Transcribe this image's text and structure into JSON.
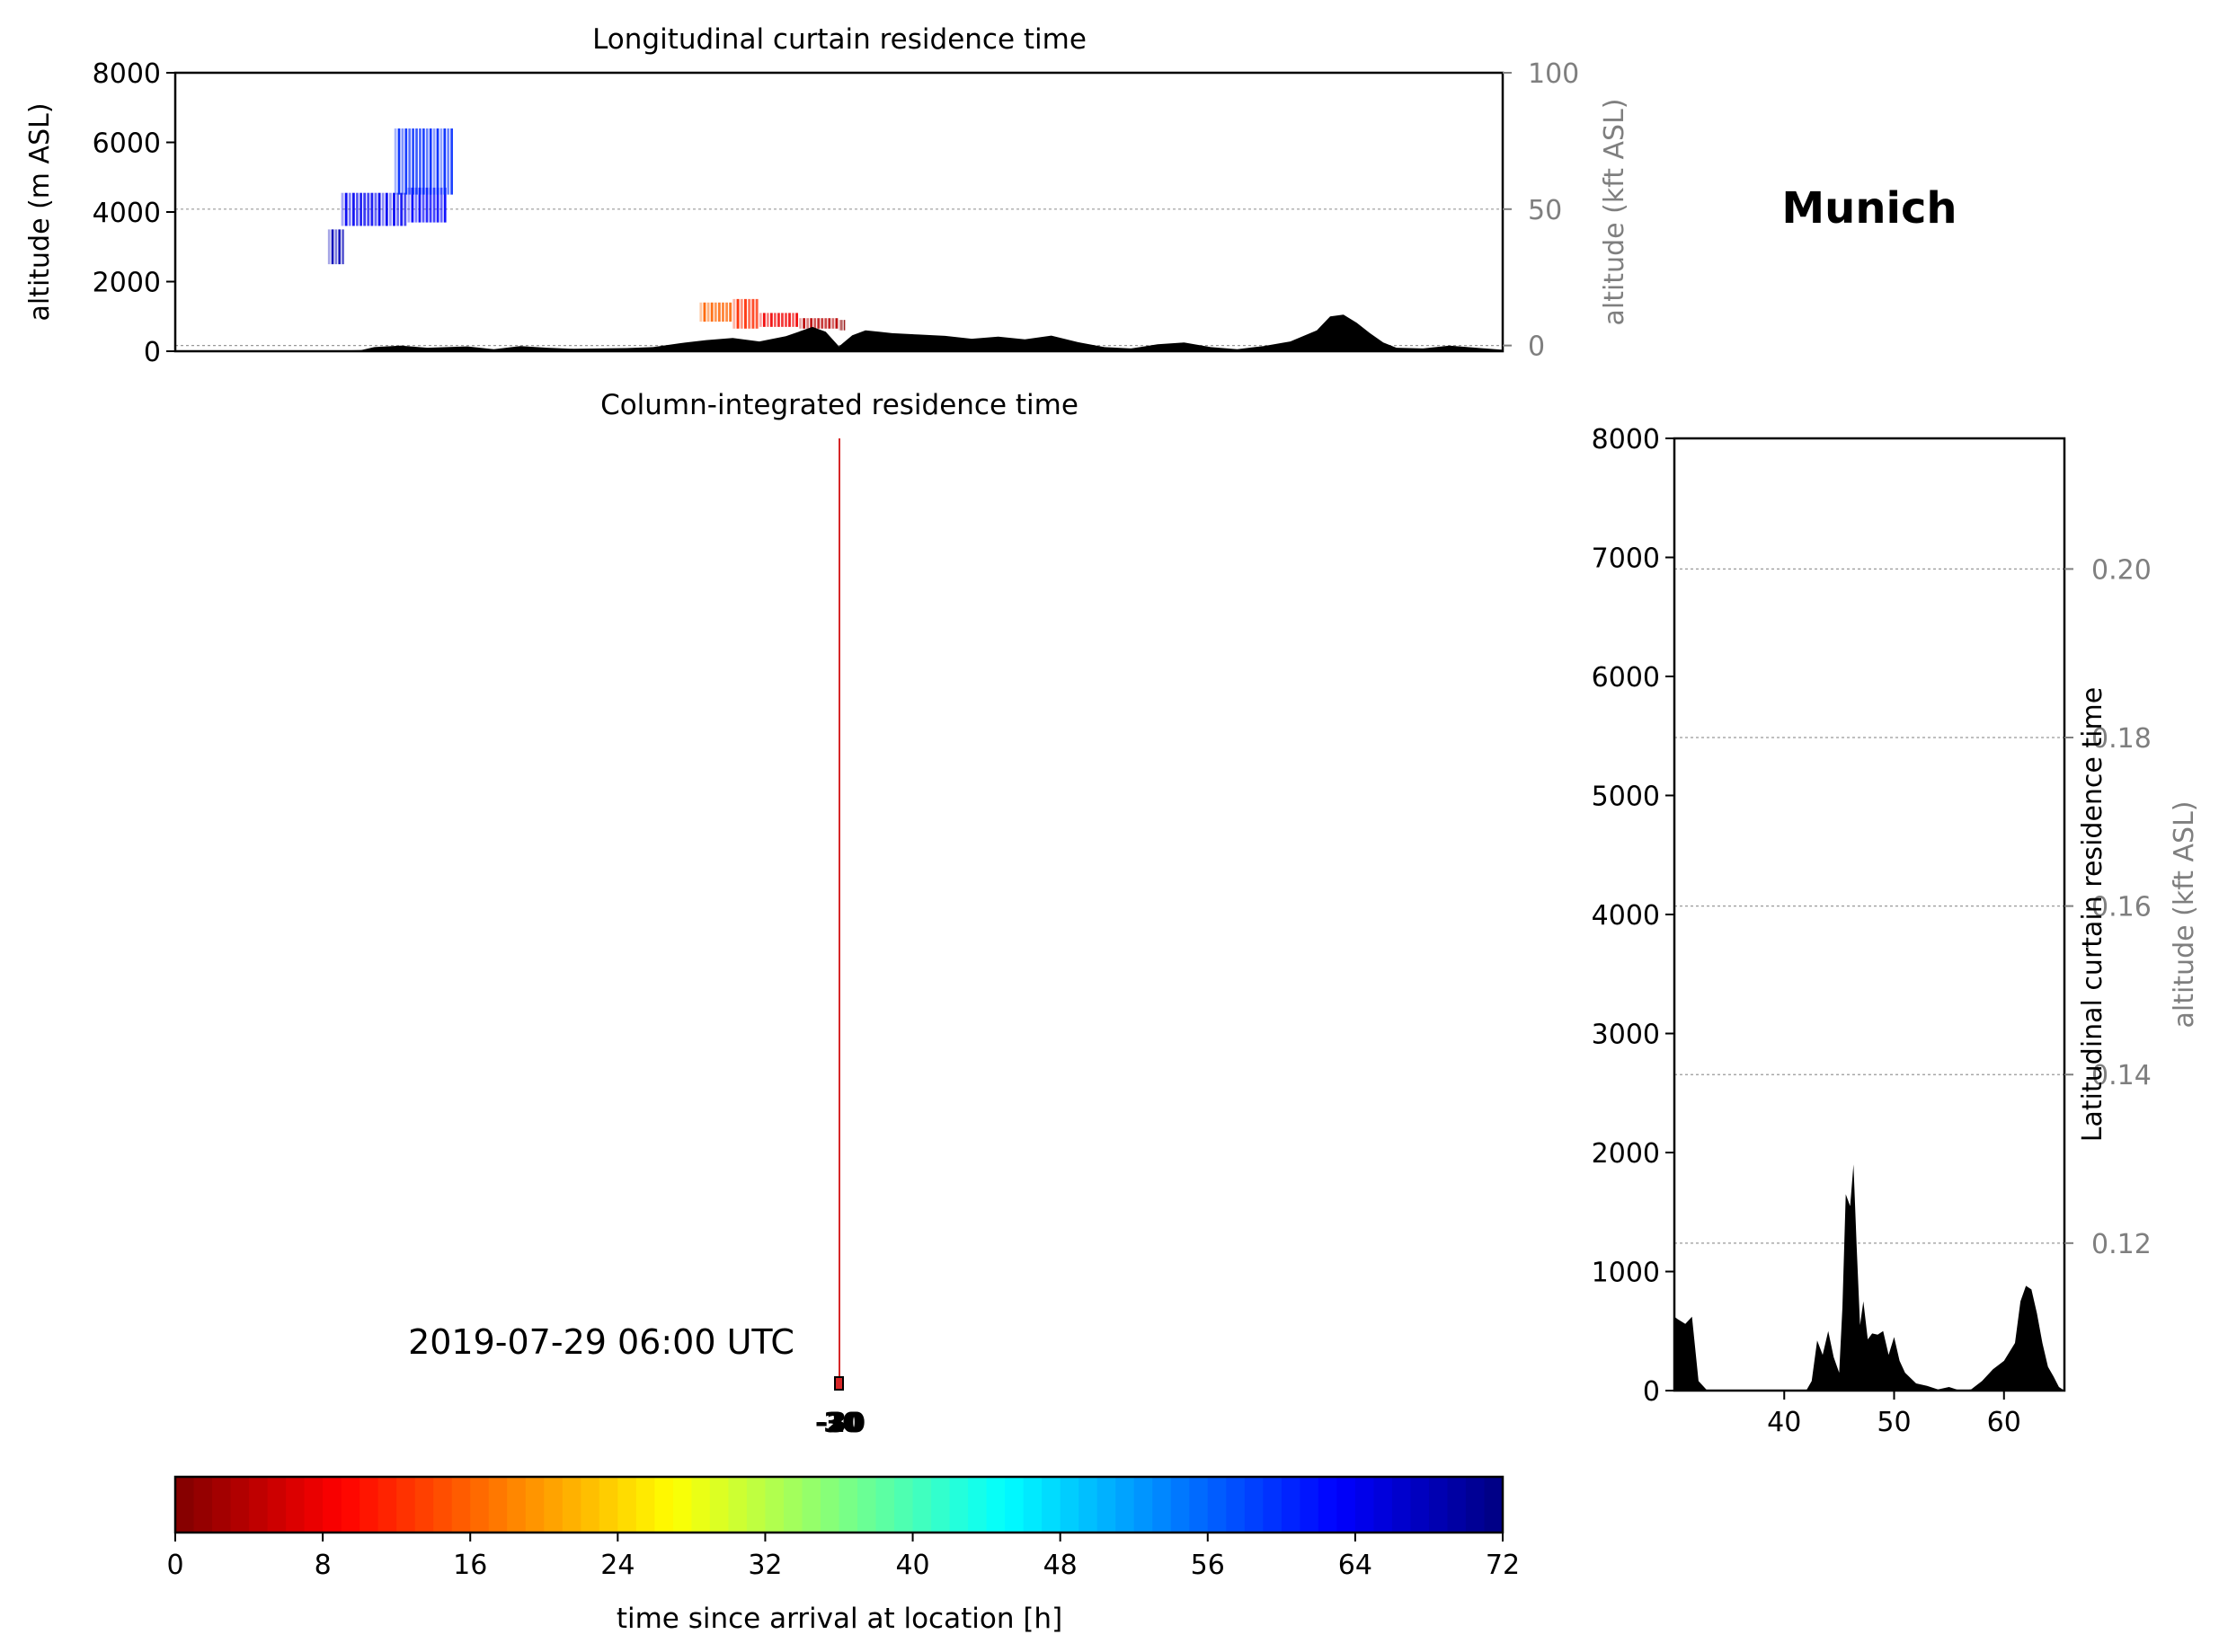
{
  "location": {
    "name": "Munich"
  },
  "timestamp": "2019-07-29 06:00 UTC",
  "point_labels": [
    "-10",
    "-20",
    "-30",
    "30"
  ],
  "colors": {
    "terrain": "#000000",
    "marker_line": "#d62728",
    "grid": "#999999",
    "secondary_axis": "#7f7f7f"
  },
  "chart_data": [
    {
      "id": "longitudinal",
      "type": "area",
      "title": "Longitudinal curtain residence time",
      "ylabel": "altitude (m ASL)",
      "ylabel_right": "altitude (kft ASL)",
      "ylim": [
        0,
        8000
      ],
      "yticks": [
        0,
        2000,
        4000,
        6000,
        8000
      ],
      "yticks_right": [
        0,
        50,
        100
      ],
      "ylim_right": [
        -2.1,
        100
      ],
      "xlim": [
        0,
        100
      ],
      "grid": "horizontal-dashed",
      "terrain": {
        "x": [
          0,
          10,
          14,
          15,
          17,
          19,
          22,
          24,
          26,
          28,
          30,
          32,
          34,
          36,
          38,
          40,
          42,
          44,
          46,
          48,
          49,
          50,
          51,
          52,
          53,
          54,
          56,
          58,
          60,
          62,
          64,
          66,
          68,
          70,
          72,
          74,
          76,
          78,
          80,
          82,
          84,
          86,
          87,
          88,
          89,
          90,
          91,
          92,
          94,
          96,
          98,
          100
        ],
        "y": [
          0,
          0,
          30,
          120,
          160,
          100,
          140,
          60,
          150,
          100,
          70,
          80,
          90,
          120,
          230,
          320,
          380,
          280,
          430,
          700,
          560,
          140,
          460,
          600,
          560,
          520,
          480,
          440,
          360,
          420,
          340,
          450,
          260,
          120,
          80,
          200,
          250,
          120,
          60,
          150,
          280,
          600,
          1000,
          1050,
          820,
          520,
          250,
          100,
          80,
          160,
          100,
          40
        ]
      },
      "plume_segments": [
        {
          "x0": 11.5,
          "x1": 12.8,
          "y0": 2500,
          "y1": 3500,
          "hours": 68
        },
        {
          "x0": 12.5,
          "x1": 17.5,
          "y0": 3600,
          "y1": 4550,
          "hours": 64
        },
        {
          "x0": 17.5,
          "x1": 20.5,
          "y0": 3700,
          "y1": 4700,
          "hours": 63
        },
        {
          "x0": 16.5,
          "x1": 21.0,
          "y0": 4500,
          "y1": 6400,
          "hours": 60
        },
        {
          "x0": 39.5,
          "x1": 42.0,
          "y0": 850,
          "y1": 1400,
          "hours": 16
        },
        {
          "x0": 42.0,
          "x1": 44.0,
          "y0": 650,
          "y1": 1500,
          "hours": 12
        },
        {
          "x0": 44.0,
          "x1": 47.0,
          "y0": 700,
          "y1": 1100,
          "hours": 8
        },
        {
          "x0": 47.0,
          "x1": 50.0,
          "y0": 650,
          "y1": 950,
          "hours": 4
        },
        {
          "x0": 50.0,
          "x1": 50.5,
          "y0": 600,
          "y1": 900,
          "hours": 1
        }
      ]
    },
    {
      "id": "column",
      "type": "scatter",
      "title": "Column-integrated residence time",
      "marker_line_x": 50.5
    },
    {
      "id": "latitudinal",
      "type": "area",
      "ylabel_right": "Latitudinal curtain residence time",
      "ylabel_right_outer": "altitude (kft ASL)",
      "xlim": [
        30,
        65.5
      ],
      "xticks": [
        40,
        50,
        60
      ],
      "ylim": [
        0,
        8000
      ],
      "yticks": [
        0,
        1000,
        2000,
        3000,
        4000,
        5000,
        6000,
        7000,
        8000
      ],
      "yticks_right": [
        0.12,
        0.14,
        0.16,
        0.18,
        0.2
      ],
      "ylim_right": [
        0.1025,
        0.2155
      ],
      "grid": "horizontal-dashed",
      "terrain": {
        "x": [
          30,
          30.3,
          31,
          31.6,
          32.2,
          33,
          35,
          38,
          40,
          42,
          42.5,
          43,
          43.5,
          44,
          44.5,
          45,
          45.3,
          45.6,
          46,
          46.3,
          46.6,
          46.9,
          47.2,
          47.6,
          48,
          48.5,
          49,
          49.5,
          50,
          50.5,
          51,
          52,
          53,
          54,
          55,
          56,
          57,
          58,
          59,
          60,
          61,
          61.5,
          62,
          62.5,
          63,
          63.5,
          64,
          64.5,
          65,
          65.5
        ],
        "y": [
          620,
          600,
          560,
          620,
          80,
          0,
          0,
          0,
          0,
          0,
          80,
          420,
          300,
          500,
          280,
          150,
          700,
          1650,
          1550,
          1900,
          1200,
          550,
          750,
          430,
          480,
          470,
          500,
          300,
          450,
          250,
          150,
          60,
          40,
          10,
          30,
          0,
          10,
          80,
          180,
          250,
          400,
          750,
          880,
          850,
          650,
          400,
          200,
          120,
          30,
          0
        ]
      }
    },
    {
      "id": "colorbar",
      "type": "heatmap",
      "xlabel": "time since arrival at location [h]",
      "range": [
        0,
        72
      ],
      "ticks": [
        0,
        8,
        16,
        24,
        32,
        40,
        48,
        56,
        64,
        72
      ],
      "colormap": "jet",
      "levels": 72
    }
  ]
}
